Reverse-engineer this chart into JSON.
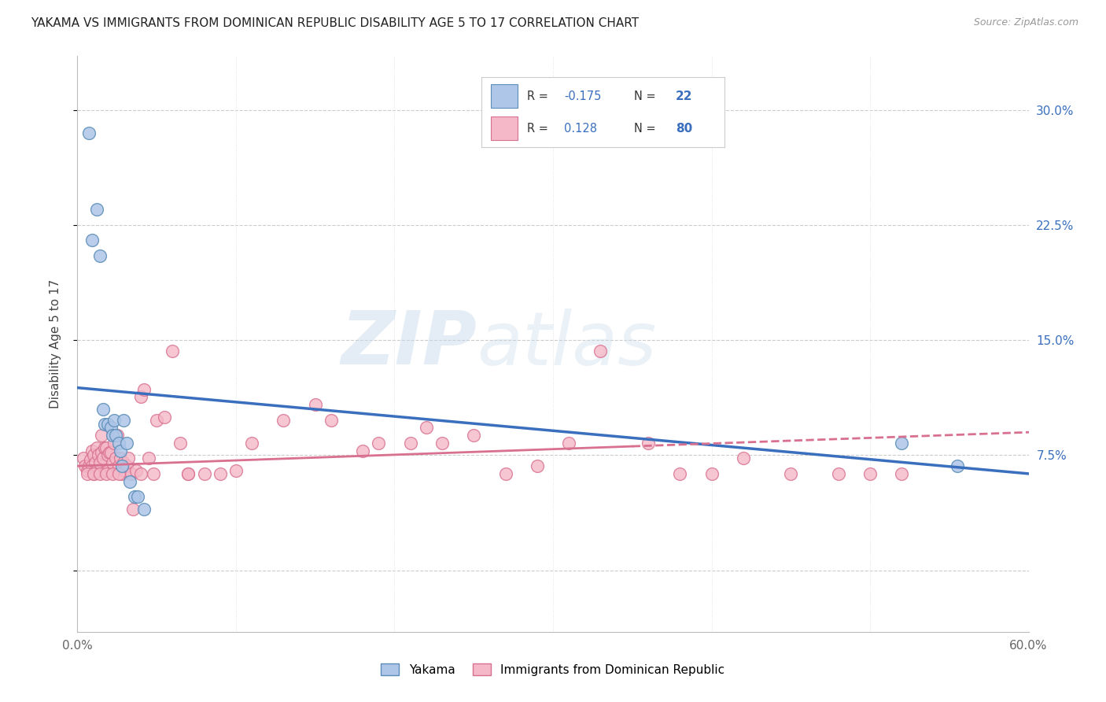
{
  "title": "YAKAMA VS IMMIGRANTS FROM DOMINICAN REPUBLIC DISABILITY AGE 5 TO 17 CORRELATION CHART",
  "source": "Source: ZipAtlas.com",
  "ylabel": "Disability Age 5 to 17",
  "xlim": [
    0.0,
    0.6
  ],
  "ylim": [
    -0.04,
    0.335
  ],
  "x_ticks": [
    0.0,
    0.1,
    0.2,
    0.3,
    0.4,
    0.5,
    0.6
  ],
  "y_ticks": [
    0.0,
    0.075,
    0.15,
    0.225,
    0.3
  ],
  "y_tick_labels_right": [
    "",
    "7.5%",
    "15.0%",
    "22.5%",
    "30.0%"
  ],
  "blue_R": -0.175,
  "blue_N": 22,
  "pink_R": 0.128,
  "pink_N": 80,
  "blue_color": "#aec6e8",
  "blue_edge_color": "#5b8db8",
  "blue_line_color": "#3a6fbe",
  "pink_color": "#f4b8c8",
  "pink_edge_color": "#d87090",
  "pink_line_color": "#d87090",
  "blue_label": "Yakama",
  "pink_label": "Immigrants from Dominican Republic",
  "blue_x": [
    0.007,
    0.009,
    0.012,
    0.014,
    0.016,
    0.017,
    0.019,
    0.021,
    0.022,
    0.023,
    0.024,
    0.026,
    0.027,
    0.028,
    0.029,
    0.031,
    0.033,
    0.036,
    0.038,
    0.042,
    0.52,
    0.555
  ],
  "blue_y": [
    0.285,
    0.215,
    0.235,
    0.205,
    0.105,
    0.095,
    0.095,
    0.093,
    0.088,
    0.098,
    0.088,
    0.083,
    0.078,
    0.068,
    0.098,
    0.083,
    0.058,
    0.048,
    0.048,
    0.04,
    0.083,
    0.068
  ],
  "pink_x": [
    0.004,
    0.005,
    0.006,
    0.007,
    0.008,
    0.009,
    0.009,
    0.01,
    0.01,
    0.011,
    0.012,
    0.012,
    0.013,
    0.014,
    0.015,
    0.015,
    0.016,
    0.017,
    0.018,
    0.018,
    0.019,
    0.019,
    0.02,
    0.021,
    0.022,
    0.023,
    0.024,
    0.025,
    0.026,
    0.027,
    0.028,
    0.029,
    0.03,
    0.031,
    0.032,
    0.034,
    0.035,
    0.037,
    0.04,
    0.042,
    0.045,
    0.048,
    0.05,
    0.055,
    0.06,
    0.065,
    0.07,
    0.08,
    0.09,
    0.1,
    0.11,
    0.13,
    0.15,
    0.16,
    0.18,
    0.19,
    0.21,
    0.22,
    0.23,
    0.25,
    0.27,
    0.29,
    0.31,
    0.33,
    0.36,
    0.38,
    0.4,
    0.42,
    0.45,
    0.48,
    0.5,
    0.52,
    0.006,
    0.01,
    0.014,
    0.018,
    0.022,
    0.026,
    0.04,
    0.07
  ],
  "pink_y": [
    0.073,
    0.068,
    0.065,
    0.068,
    0.072,
    0.068,
    0.078,
    0.063,
    0.075,
    0.07,
    0.065,
    0.08,
    0.075,
    0.07,
    0.077,
    0.088,
    0.073,
    0.08,
    0.065,
    0.08,
    0.075,
    0.065,
    0.077,
    0.077,
    0.07,
    0.083,
    0.073,
    0.088,
    0.068,
    0.073,
    0.063,
    0.07,
    0.065,
    0.068,
    0.073,
    0.063,
    0.04,
    0.065,
    0.113,
    0.118,
    0.073,
    0.063,
    0.098,
    0.1,
    0.143,
    0.083,
    0.063,
    0.063,
    0.063,
    0.065,
    0.083,
    0.098,
    0.108,
    0.098,
    0.078,
    0.083,
    0.083,
    0.093,
    0.083,
    0.088,
    0.063,
    0.068,
    0.083,
    0.143,
    0.083,
    0.063,
    0.063,
    0.073,
    0.063,
    0.063,
    0.063,
    0.063,
    0.063,
    0.063,
    0.063,
    0.063,
    0.063,
    0.063,
    0.063,
    0.063
  ],
  "watermark_zip": "ZIP",
  "watermark_atlas": "atlas",
  "watermark_color": "#c8d8ea",
  "legend_R_color": "#3a6fbe",
  "legend_box_blue": "#aec6e8",
  "legend_box_blue_edge": "#5b8db8",
  "legend_box_pink": "#f4b8c8",
  "legend_box_pink_edge": "#d87090"
}
